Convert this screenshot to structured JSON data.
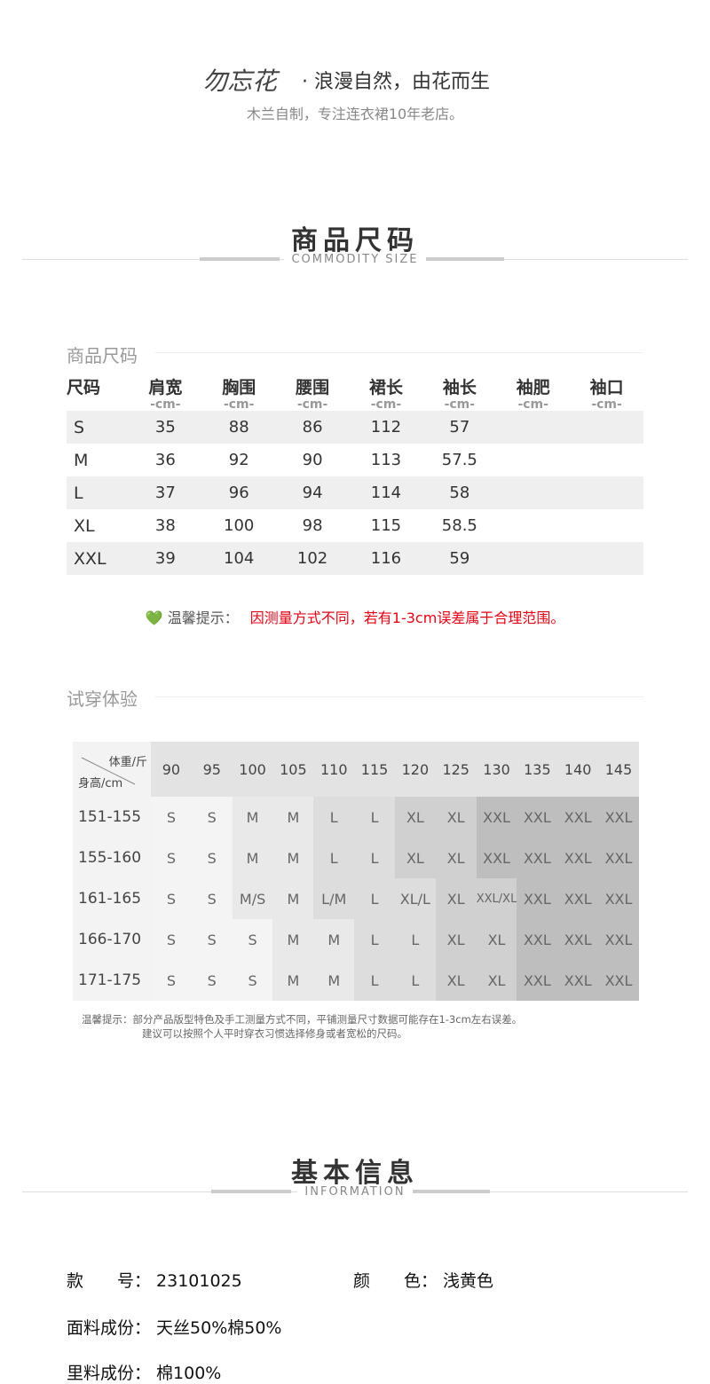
{
  "brand": {
    "logo": "勿忘花",
    "slogan": "·  浪漫自然，由花而生",
    "tagline": "木兰自制，专注连衣裙10年老店。"
  },
  "size_section": {
    "title": "商品尺码",
    "subtitle": "COMMODITY SIZE"
  },
  "size_table": {
    "heading": "商品尺码",
    "headers": [
      "尺码",
      "肩宽",
      "胸围",
      "腰围",
      "裙长",
      "袖长",
      "袖肥",
      "袖口"
    ],
    "units": [
      "",
      "-cm-",
      "-cm-",
      "-cm-",
      "-cm-",
      "-cm-",
      "-cm-",
      "-cm-"
    ],
    "rows": [
      [
        "S",
        "35",
        "88",
        "86",
        "112",
        "57",
        "",
        ""
      ],
      [
        "M",
        "36",
        "92",
        "90",
        "113",
        "57.5",
        "",
        ""
      ],
      [
        "L",
        "37",
        "96",
        "94",
        "114",
        "58",
        "",
        ""
      ],
      [
        "XL",
        "38",
        "100",
        "98",
        "115",
        "58.5",
        "",
        ""
      ],
      [
        "XXL",
        "39",
        "104",
        "102",
        "116",
        "59",
        "",
        ""
      ]
    ]
  },
  "tip": {
    "icon": "green-heart-icon",
    "label": "温馨提示：",
    "text": "因测量方式不同，若有1-3cm误差属于合理范围。",
    "text_color": "#e60012"
  },
  "fit_section": {
    "heading": "试穿体验",
    "corner_weight": "体重/斤",
    "corner_height": "身高/cm",
    "weights": [
      "90",
      "95",
      "100",
      "105",
      "110",
      "115",
      "120",
      "125",
      "130",
      "135",
      "140",
      "145"
    ],
    "heights": [
      "151-155",
      "155-160",
      "161-165",
      "166-170",
      "171-175"
    ],
    "sizes": [
      [
        "S",
        "S",
        "M",
        "M",
        "L",
        "L",
        "XL",
        "XL",
        "XXL",
        "XXL",
        "XXL",
        "XXL"
      ],
      [
        "S",
        "S",
        "M",
        "M",
        "L",
        "L",
        "XL",
        "XL",
        "XXL",
        "XXL",
        "XXL",
        "XXL"
      ],
      [
        "S",
        "S",
        "M/S",
        "M",
        "L/M",
        "L",
        "XL/L",
        "XL",
        "XXL/XL",
        "XXL",
        "XXL",
        "XXL"
      ],
      [
        "S",
        "S",
        "S",
        "M",
        "M",
        "L",
        "L",
        "XL",
        "XL",
        "XXL",
        "XXL",
        "XXL"
      ],
      [
        "S",
        "S",
        "S",
        "M",
        "M",
        "L",
        "L",
        "XL",
        "XL",
        "XXL",
        "XXL",
        "XXL"
      ]
    ],
    "shade_levels": [
      [
        0,
        0,
        1,
        1,
        2,
        2,
        3,
        3,
        4,
        4,
        4,
        4
      ],
      [
        0,
        0,
        1,
        1,
        2,
        2,
        3,
        3,
        4,
        4,
        4,
        4
      ],
      [
        0,
        0,
        1,
        1,
        2,
        2,
        2,
        3,
        3,
        4,
        4,
        4
      ],
      [
        0,
        0,
        0,
        1,
        1,
        2,
        2,
        3,
        3,
        4,
        4,
        4
      ],
      [
        0,
        0,
        0,
        1,
        1,
        2,
        2,
        3,
        3,
        4,
        4,
        4
      ]
    ],
    "shade_colors": [
      "#f4f4f4",
      "#e9e9e9",
      "#dddddd",
      "#d0d0d0",
      "#bebebe"
    ],
    "note_line1": "温馨提示：部分产品版型特色及手工测量方式不同，平铺测量尺寸数据可能存在1-3cm左右误差。",
    "note_line2": "建议可以按照个人平时穿衣习惯选择修身或者宽松的尺码。"
  },
  "info_section": {
    "title": "基本信息",
    "subtitle": "INFORMATION",
    "style_label": "款　　号：",
    "style_value": "23101025",
    "color_label": "颜　　色：",
    "color_value": "浅黄色",
    "fabric_label": "面料成份：",
    "fabric_value": "天丝50%棉50%",
    "lining_label": "里料成份：",
    "lining_value": "棉100%"
  }
}
